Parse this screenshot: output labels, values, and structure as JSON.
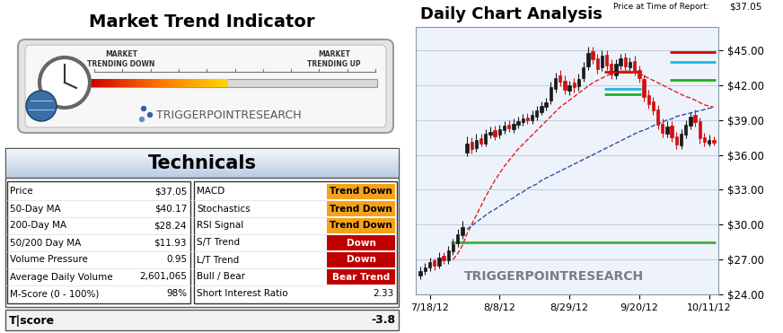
{
  "indicator": {
    "title": "Market Trend Indicator",
    "left_label": "MARKET\nTRENDING DOWN",
    "right_label": "MARKET\nTRENDING UP",
    "value": 48,
    "range": [
      0,
      100
    ],
    "logo": "TRIGGERPOINTRESEARCH"
  },
  "table": {
    "title": "Technicals",
    "left_rows": [
      [
        "Price",
        "$37.05"
      ],
      [
        "50-Day MA",
        "$40.17"
      ],
      [
        "200-Day MA",
        "$28.24"
      ],
      [
        "50/200 Day MA",
        "$11.93"
      ],
      [
        "Volume Pressure",
        "0.95"
      ],
      [
        "Average Daily Volume",
        "2,601,065"
      ],
      [
        "M-Score (0 - 100%)",
        "98%"
      ]
    ],
    "right_rows": [
      {
        "label": "MACD",
        "value": "Trend Down",
        "color": "#f5a21b"
      },
      {
        "label": "Stochastics",
        "value": "Trend Down",
        "color": "#f5a21b"
      },
      {
        "label": "RSI Signal",
        "value": "Trend Down",
        "color": "#f5a21b"
      },
      {
        "label": "S/T Trend",
        "value": "Down",
        "color": "#c00000"
      },
      {
        "label": "L/T Trend",
        "value": "Down",
        "color": "#c00000"
      },
      {
        "label": "Bull / Bear",
        "value": "Bear Trend",
        "color": "#c00000"
      },
      {
        "label": "Short Interest Ratio",
        "value": "2.33"
      }
    ],
    "footer": [
      "T|score",
      "-3.8"
    ]
  },
  "chart_data": {
    "type": "candlestick",
    "title": "Daily Chart Analysis",
    "price_label": "Price at Time of Report:",
    "price": "$37.05",
    "watermark": "TRIGGERPOINTRESEARCH",
    "categories": [
      null,
      null,
      "7/18/12",
      null,
      null,
      null,
      null,
      null,
      null,
      null,
      null,
      null,
      null,
      null,
      null,
      null,
      null,
      "8/8/12",
      null,
      null,
      null,
      null,
      null,
      null,
      null,
      null,
      null,
      null,
      null,
      null,
      null,
      null,
      "8/29/12",
      null,
      null,
      null,
      null,
      null,
      null,
      null,
      null,
      null,
      null,
      null,
      null,
      null,
      null,
      "9/20/12",
      null,
      null,
      null,
      null,
      null,
      null,
      null,
      null,
      null,
      null,
      null,
      null,
      null,
      null,
      "10/11/12",
      null
    ],
    "open": [
      25.6,
      26.0,
      26.3,
      26.9,
      26.5,
      27.3,
      26.9,
      27.7,
      28.4,
      29.1,
      36.2,
      37.1,
      36.6,
      37.4,
      37.0,
      37.7,
      38.1,
      37.7,
      38.1,
      38.6,
      38.2,
      38.6,
      38.8,
      39.2,
      39.0,
      39.3,
      39.7,
      40.1,
      40.7,
      41.7,
      42.8,
      42.4,
      41.5,
      42.2,
      41.9,
      42.6,
      43.6,
      44.9,
      44.3,
      43.5,
      44.6,
      43.8,
      42.8,
      43.7,
      44.4,
      43.5,
      44.1,
      43.3,
      42.5,
      41.1,
      40.6,
      39.9,
      38.7,
      37.8,
      38.5,
      37.6,
      36.8,
      37.7,
      38.5,
      39.4,
      38.9,
      37.5,
      37.0,
      37.3
    ],
    "high": [
      26.4,
      26.7,
      27.2,
      27.1,
      27.6,
      27.6,
      28.2,
      28.8,
      29.6,
      30.3,
      37.6,
      37.5,
      37.8,
      37.8,
      38.2,
      38.4,
      38.5,
      38.6,
      38.9,
      39.0,
      39.1,
      39.3,
      39.5,
      39.6,
      39.8,
      40.2,
      40.6,
      40.9,
      42.3,
      43.1,
      43.3,
      42.8,
      42.4,
      42.6,
      43.0,
      44.0,
      45.3,
      45.3,
      44.7,
      45.0,
      45.0,
      44.2,
      44.2,
      44.7,
      44.8,
      44.4,
      44.5,
      43.7,
      42.9,
      41.6,
      41.0,
      40.3,
      39.1,
      38.9,
      38.9,
      38.0,
      38.2,
      39.0,
      39.7,
      39.9,
      39.2,
      37.9,
      37.7,
      37.6
    ],
    "low": [
      25.3,
      25.7,
      26.0,
      26.1,
      26.2,
      26.6,
      26.6,
      27.4,
      28.1,
      28.8,
      35.9,
      36.1,
      36.3,
      36.7,
      36.7,
      37.4,
      37.3,
      37.4,
      37.8,
      38.0,
      37.9,
      38.3,
      38.5,
      38.7,
      38.7,
      39.0,
      39.4,
      39.8,
      40.4,
      41.4,
      41.9,
      41.2,
      41.1,
      41.4,
      41.5,
      42.3,
      43.3,
      43.8,
      43.0,
      43.2,
      43.3,
      42.5,
      42.5,
      43.4,
      43.2,
      43.2,
      42.8,
      42.2,
      40.6,
      40.0,
      39.4,
      38.2,
      37.5,
      37.5,
      37.1,
      36.5,
      36.5,
      37.4,
      38.2,
      38.4,
      37.0,
      36.7,
      36.7,
      36.8
    ],
    "close": [
      26.0,
      26.3,
      26.8,
      26.5,
      27.2,
      26.9,
      27.8,
      28.3,
      29.2,
      29.8,
      37.0,
      36.5,
      37.3,
      37.0,
      37.8,
      38.0,
      37.6,
      38.2,
      38.5,
      38.3,
      38.7,
      38.9,
      39.1,
      39.0,
      39.4,
      39.8,
      40.2,
      40.5,
      41.8,
      42.6,
      42.3,
      41.6,
      42.0,
      41.8,
      42.5,
      43.5,
      44.8,
      44.2,
      43.4,
      44.5,
      43.7,
      42.9,
      43.8,
      44.3,
      43.6,
      44.0,
      43.2,
      42.6,
      41.0,
      40.4,
      39.8,
      38.6,
      37.9,
      38.4,
      37.5,
      36.9,
      37.8,
      38.6,
      39.3,
      38.8,
      37.4,
      37.1,
      37.3,
      37.05
    ],
    "overlays": [
      {
        "type": "line",
        "color": "#e02020",
        "line_style": "dashed",
        "values": [
          null,
          null,
          null,
          null,
          null,
          null,
          null,
          27.0,
          27.5,
          28.2,
          29.2,
          30.0,
          30.8,
          31.6,
          32.4,
          33.1,
          33.8,
          34.4,
          35.0,
          35.5,
          36.0,
          36.5,
          36.9,
          37.3,
          37.7,
          38.1,
          38.5,
          38.9,
          39.3,
          39.7,
          40.1,
          40.4,
          40.7,
          41.0,
          41.3,
          41.6,
          41.9,
          42.2,
          42.4,
          42.6,
          42.8,
          43.0,
          43.1,
          43.2,
          43.2,
          43.2,
          43.1,
          43.0,
          42.8,
          42.6,
          42.4,
          42.2,
          42.0,
          41.8,
          41.6,
          41.4,
          41.2,
          41.0,
          40.9,
          40.7,
          40.5,
          40.3,
          40.2,
          40.1
        ]
      },
      {
        "type": "line",
        "color": "#3050a0",
        "line_style": "dashed",
        "values": [
          null,
          null,
          null,
          null,
          null,
          null,
          null,
          null,
          null,
          null,
          29.6,
          29.9,
          30.2,
          30.5,
          30.8,
          31.1,
          31.3,
          31.6,
          31.8,
          32.1,
          32.3,
          32.6,
          32.8,
          33.1,
          33.3,
          33.5,
          33.8,
          34.0,
          34.2,
          34.4,
          34.6,
          34.8,
          35.0,
          35.2,
          35.4,
          35.6,
          35.8,
          36.0,
          36.2,
          36.4,
          36.6,
          36.8,
          37.0,
          37.2,
          37.4,
          37.6,
          37.8,
          38.0,
          38.1,
          38.3,
          38.5,
          38.7,
          38.8,
          39.0,
          39.1,
          39.3,
          39.4,
          39.5,
          39.6,
          39.7,
          39.8,
          39.9,
          40.0,
          40.1
        ]
      }
    ],
    "levels": [
      {
        "value": 44.85,
        "color": "#e00000",
        "start": 54,
        "end": 63
      },
      {
        "value": 43.96,
        "color": "#20b8e0",
        "start": 54,
        "end": 63
      },
      {
        "value": 42.41,
        "color": "#20b020",
        "start": 54,
        "end": 63
      },
      {
        "value": 43.15,
        "color": "#e00000",
        "start": 40,
        "end": 47
      },
      {
        "value": 41.7,
        "color": "#20b8e0",
        "start": 40,
        "end": 47
      },
      {
        "value": 41.2,
        "color": "#20b020",
        "start": 40,
        "end": 47
      },
      {
        "value": 28.5,
        "color": "#40b040",
        "start": 7,
        "end": 63
      }
    ],
    "ylim": [
      24,
      47
    ],
    "yticks": [
      {
        "value": 24,
        "label": "$24.00"
      },
      {
        "value": 27,
        "label": "$27.00"
      },
      {
        "value": 30,
        "label": "$30.00"
      },
      {
        "value": 33,
        "label": "$33.00"
      },
      {
        "value": 36,
        "label": "$36.00"
      },
      {
        "value": 39,
        "label": "$39.00"
      },
      {
        "value": 42,
        "label": "$42.00"
      },
      {
        "value": 45,
        "label": "$45.00"
      }
    ],
    "grid": true
  }
}
